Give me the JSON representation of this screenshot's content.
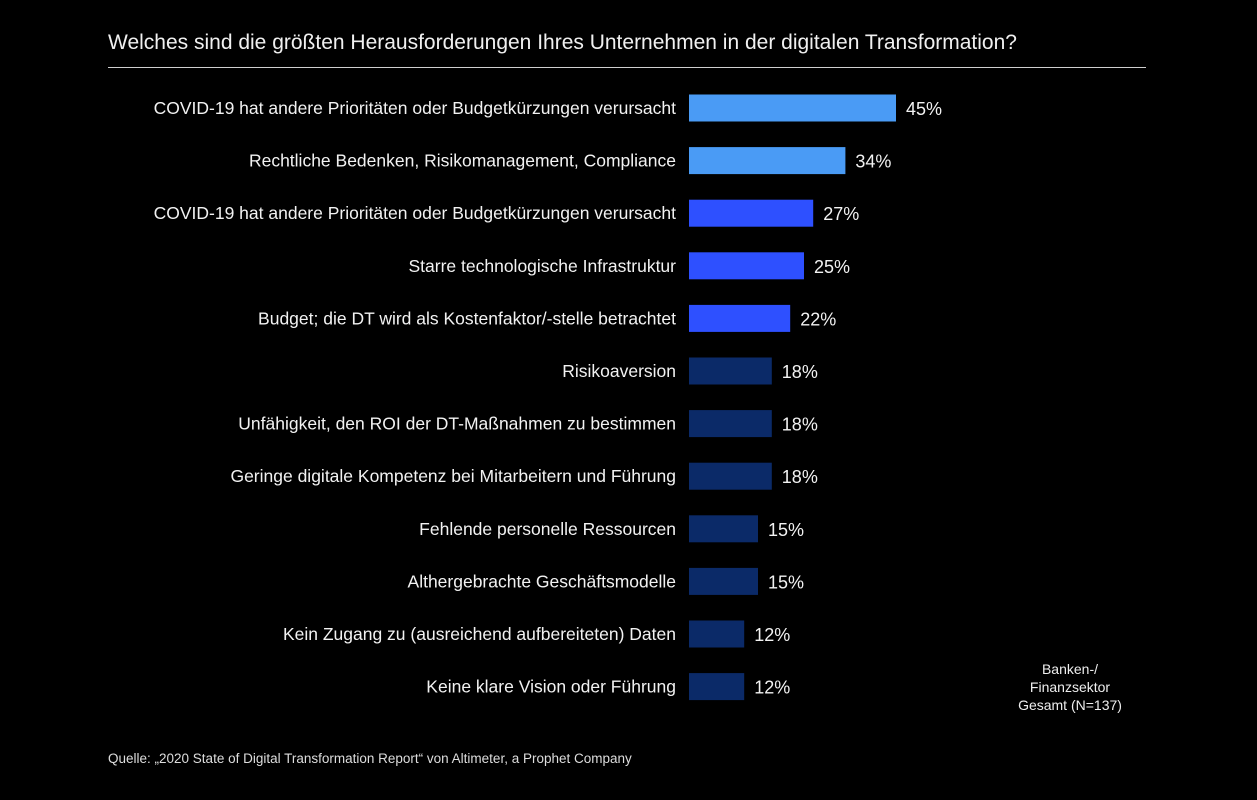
{
  "chart_data": {
    "type": "bar",
    "orientation": "horizontal",
    "title": "Welches sind die größten Herausforderungen Ihres Unternehmen in der digitalen Transformation?",
    "categories": [
      "COVID-19 hat andere Prioritäten oder Budgetkürzungen verursacht",
      "Rechtliche Bedenken, Risikomanagement, Compliance",
      "COVID-19 hat andere Prioritäten oder Budgetkürzungen verursacht",
      "Starre technologische Infrastruktur",
      "Budget; die DT wird als Kostenfaktor/-stelle betrachtet",
      "Risikoaversion",
      "Unfähigkeit, den ROI der DT-Maßnahmen zu bestimmen",
      "Geringe digitale Kompetenz bei Mitarbeitern und Führung",
      "Fehlende personelle Ressourcen",
      "Althergebrachte Geschäftsmodelle",
      "Kein Zugang zu (ausreichend aufbereiteten) Daten",
      "Keine klare Vision oder Führung"
    ],
    "values": [
      45,
      34,
      27,
      25,
      22,
      18,
      18,
      18,
      15,
      15,
      12,
      12
    ],
    "value_labels": [
      "45%",
      "34%",
      "27%",
      "25%",
      "22%",
      "18%",
      "18%",
      "18%",
      "15%",
      "15%",
      "12%",
      "12%"
    ],
    "colors": [
      "#4a9bf5",
      "#4a9bf5",
      "#2e50ff",
      "#2e50ff",
      "#2e50ff",
      "#0b2a68",
      "#0b2a68",
      "#0b2a68",
      "#0b2a68",
      "#0b2a68",
      "#0b2a68",
      "#0b2a68"
    ],
    "unit": "%",
    "xlim": [
      0,
      100
    ],
    "grid": false,
    "legend": {
      "placement": "bottom-right",
      "lines": [
        "Banken-/",
        "Finanzsektor",
        "Gesamt (N=137)"
      ]
    },
    "source": "Quelle: „2020 State of Digital Transformation Report“ von Altimeter, a Prophet Company"
  }
}
